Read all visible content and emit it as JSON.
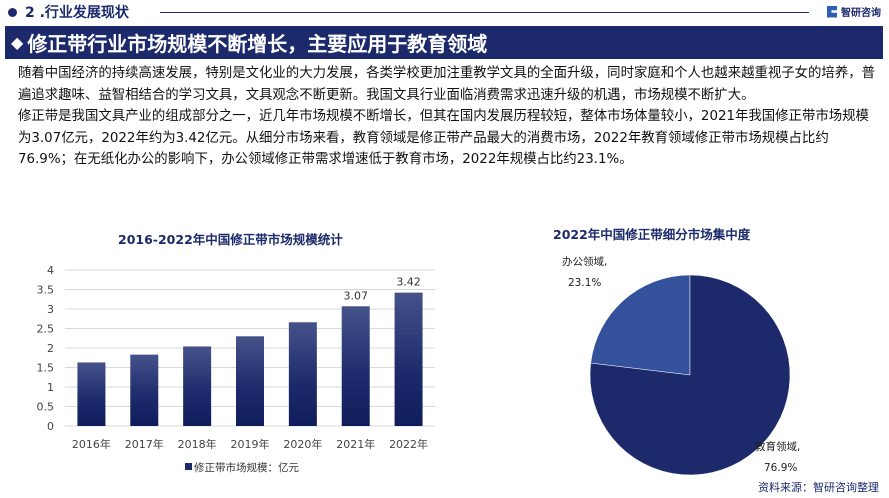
{
  "section": {
    "title": "2 .行业发展现状"
  },
  "brand": {
    "name": "智研咨询"
  },
  "banner": {
    "title": "修正带行业市场规模不断增长，主要应用于教育领域"
  },
  "paragraphs": [
    "随着中国经济的持续高速发展，特别是文化业的大力发展，各类学校更加注重教学文具的全面升级，同时家庭和个人也越来越重视子女的培养，普遍追求趣味、益智相结合的学习文具，文具观念不断更新。我国文具行业面临消费需求迅速升级的机遇，市场规模不断扩大。",
    "修正带是我国文具产业的组成部分之一，近几年市场规模不断增长，但其在国内发展历程较短，整体市场体量较小，2021年我国修正带市场规模为3.07亿元，2022年约为3.42亿元。从细分市场来看，教育领域是修正带产品最大的消费市场，2022年教育领域修正带市场规模占比约76.9%；在无纸化办公的影响下，办公领域修正带需求增速低于教育市场，2022年规模占比约23.1%。"
  ],
  "chart_data": [
    {
      "type": "bar",
      "title": "2016-2022年中国修正带市场规模统计",
      "categories": [
        "2016年",
        "2017年",
        "2018年",
        "2019年",
        "2020年",
        "2021年",
        "2022年"
      ],
      "series": [
        {
          "name": "修正带市场规模：亿元",
          "values": [
            1.63,
            1.83,
            2.04,
            2.3,
            2.66,
            3.07,
            3.42
          ]
        }
      ],
      "data_labels": {
        "5": "3.07",
        "6": "3.42"
      },
      "yticks": [
        "0",
        "0.5",
        "1",
        "1.5",
        "2",
        "2.5",
        "3",
        "3.5",
        "4"
      ],
      "ylim": [
        0,
        4
      ],
      "grid": true,
      "legend": "bottom",
      "color": "#1c2a6b"
    },
    {
      "type": "pie",
      "title": "2022年中国修正带细分市场集中度",
      "slices": [
        {
          "name": "办公领域",
          "value": 23.1,
          "label": "23.1%",
          "color": "#34519c"
        },
        {
          "name": "教育领域",
          "value": 76.9,
          "label": "76.9%",
          "color": "#1c2a6b"
        }
      ]
    }
  ],
  "source": "资料来源：智研咨询整理"
}
